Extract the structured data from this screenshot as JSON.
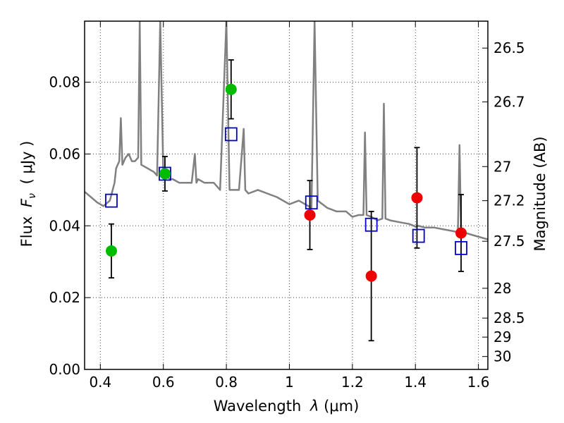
{
  "chart_data": {
    "type": "scatter",
    "xlabel": "Wavelength",
    "xlabel_symbol": "λ",
    "xlabel_unit": "(μm)",
    "ylabel": "Flux",
    "ylabel_symbol": "F",
    "ylabel_sub": "ν",
    "ylabel_unit": "( μJy )",
    "y2label": "Magnitude (AB)",
    "xlim": [
      0.35,
      1.63
    ],
    "ylim": [
      0.0,
      0.097
    ],
    "x_ticks": [
      {
        "v": 0.4,
        "label": "0.4"
      },
      {
        "v": 0.6,
        "label": "0.6"
      },
      {
        "v": 0.8,
        "label": "0.8"
      },
      {
        "v": 1.0,
        "label": "1"
      },
      {
        "v": 1.2,
        "label": "1.2"
      },
      {
        "v": 1.4,
        "label": "1.4"
      },
      {
        "v": 1.6,
        "label": "1.6"
      }
    ],
    "y_ticks": [
      {
        "v": 0.0,
        "label": "0.00"
      },
      {
        "v": 0.02,
        "label": "0.02"
      },
      {
        "v": 0.04,
        "label": "0.04"
      },
      {
        "v": 0.06,
        "label": "0.06"
      },
      {
        "v": 0.08,
        "label": "0.08"
      }
    ],
    "y2_ticks": [
      {
        "label": "26.5",
        "flux": 0.0895
      },
      {
        "label": "26.7",
        "flux": 0.0745
      },
      {
        "label": "27",
        "flux": 0.0565
      },
      {
        "label": "27.2",
        "flux": 0.047
      },
      {
        "label": "27.5",
        "flux": 0.0357
      },
      {
        "label": "28",
        "flux": 0.0226
      },
      {
        "label": "28.5",
        "flux": 0.0143
      },
      {
        "label": "29",
        "flux": 0.009
      },
      {
        "label": "30",
        "flux": 0.0036
      }
    ],
    "grid": true,
    "series": [
      {
        "name": "model-spectrum",
        "color": "#808080",
        "x": [
          0.35,
          0.37,
          0.39,
          0.41,
          0.43,
          0.445,
          0.45,
          0.46,
          0.465,
          0.47,
          0.48,
          0.49,
          0.5,
          0.51,
          0.52,
          0.525,
          0.53,
          0.55,
          0.57,
          0.58,
          0.59,
          0.6,
          0.61,
          0.62,
          0.63,
          0.65,
          0.67,
          0.69,
          0.7,
          0.705,
          0.71,
          0.73,
          0.75,
          0.76,
          0.78,
          0.8,
          0.81,
          0.82,
          0.84,
          0.855,
          0.86,
          0.87,
          0.9,
          0.93,
          0.96,
          1.0,
          1.03,
          1.05,
          1.07,
          1.08,
          1.09,
          1.12,
          1.15,
          1.18,
          1.2,
          1.22,
          1.235,
          1.24,
          1.245,
          1.26,
          1.28,
          1.295,
          1.3,
          1.305,
          1.32,
          1.35,
          1.38,
          1.4,
          1.41,
          1.43,
          1.46,
          1.49,
          1.52,
          1.535,
          1.54,
          1.545,
          1.56,
          1.59,
          1.63
        ],
        "y": [
          0.0495,
          0.048,
          0.0465,
          0.0455,
          0.047,
          0.052,
          0.056,
          0.058,
          0.07,
          0.057,
          0.059,
          0.06,
          0.058,
          0.058,
          0.059,
          0.097,
          0.057,
          0.056,
          0.055,
          0.054,
          0.097,
          0.054,
          0.054,
          0.053,
          0.053,
          0.052,
          0.052,
          0.052,
          0.06,
          0.052,
          0.053,
          0.052,
          0.052,
          0.052,
          0.05,
          0.097,
          0.05,
          0.05,
          0.05,
          0.067,
          0.05,
          0.049,
          0.05,
          0.049,
          0.048,
          0.046,
          0.047,
          0.046,
          0.045,
          0.097,
          0.047,
          0.045,
          0.044,
          0.044,
          0.0425,
          0.043,
          0.043,
          0.066,
          0.043,
          0.0425,
          0.0415,
          0.042,
          0.074,
          0.042,
          0.0415,
          0.041,
          0.0405,
          0.0398,
          0.04,
          0.0395,
          0.0395,
          0.039,
          0.0385,
          0.0382,
          0.0625,
          0.0382,
          0.038,
          0.0372,
          0.0362
        ]
      },
      {
        "name": "model-photometry",
        "marker": "open-square",
        "color": "#0000cc",
        "x": [
          0.435,
          0.605,
          0.815,
          1.07,
          1.26,
          1.41,
          1.545
        ],
        "y": [
          0.047,
          0.0545,
          0.0655,
          0.0465,
          0.0403,
          0.0372,
          0.0338
        ]
      },
      {
        "name": "observed-hst",
        "marker": "circle",
        "color": "#00bb00",
        "x": [
          0.435,
          0.605,
          0.815
        ],
        "y": [
          0.033,
          0.0545,
          0.078
        ],
        "err": [
          0.0075,
          0.0048,
          0.0082
        ]
      },
      {
        "name": "observed-nir",
        "marker": "circle",
        "color": "#ee0000",
        "x": [
          1.065,
          1.26,
          1.405,
          1.545
        ],
        "y": [
          0.043,
          0.026,
          0.0478,
          0.038
        ],
        "err": [
          0.0096,
          0.018,
          0.014,
          0.0107
        ]
      }
    ]
  }
}
